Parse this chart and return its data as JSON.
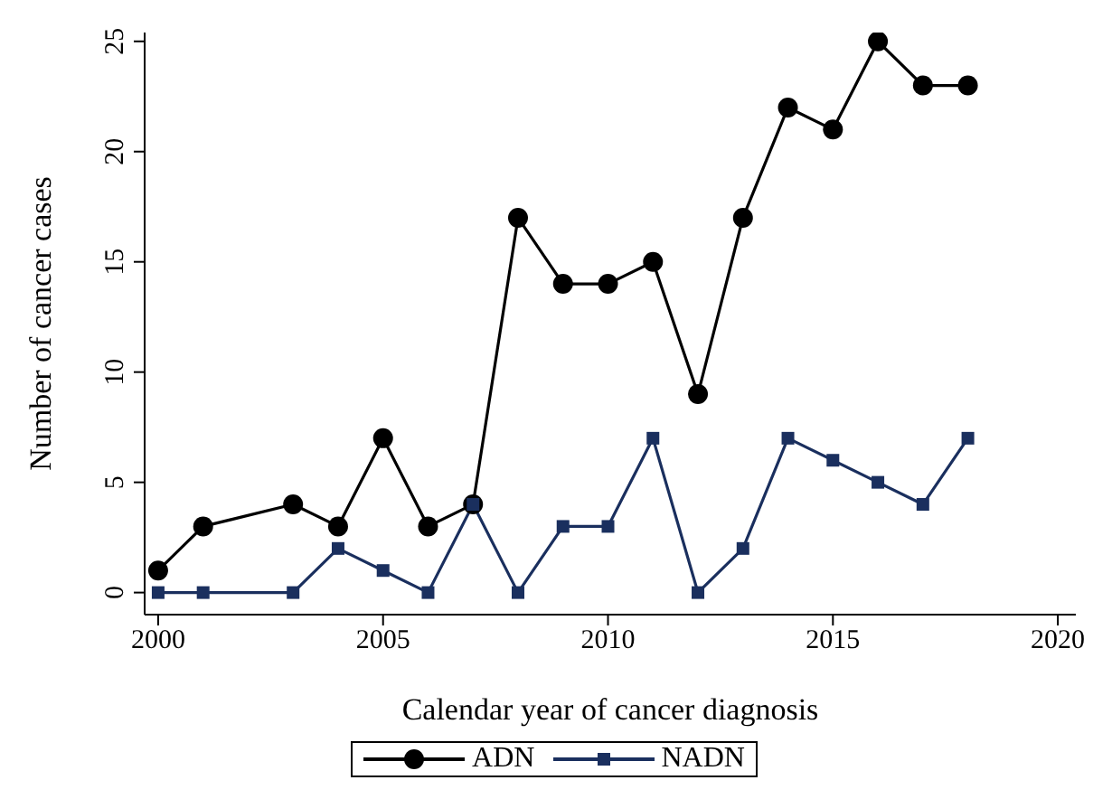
{
  "chart_data": {
    "type": "line",
    "xlabel": "Calendar year of cancer diagnosis",
    "ylabel": "Number of cancer cases",
    "x": [
      2000,
      2001,
      2003,
      2004,
      2005,
      2006,
      2007,
      2008,
      2009,
      2010,
      2011,
      2012,
      2013,
      2014,
      2015,
      2016,
      2017,
      2018
    ],
    "series": [
      {
        "name": "ADN",
        "color": "#000000",
        "marker": "circle",
        "values": [
          1,
          3,
          4,
          3,
          7,
          3,
          4,
          17,
          14,
          14,
          15,
          9,
          17,
          22,
          21,
          25,
          23,
          23
        ]
      },
      {
        "name": "NADN",
        "color": "#1a2f5e",
        "marker": "square",
        "values": [
          0,
          0,
          0,
          2,
          1,
          0,
          4,
          0,
          3,
          3,
          7,
          0,
          2,
          7,
          6,
          5,
          4,
          7
        ]
      }
    ],
    "xlim": [
      1999.7,
      2020.4
    ],
    "xticks": [
      2000,
      2005,
      2010,
      2015,
      2020
    ],
    "ylim": [
      -1,
      25.4
    ],
    "yticks": [
      0,
      5,
      10,
      15,
      20,
      25
    ],
    "grid": false,
    "legend": "bottom",
    "line_style": "solid"
  }
}
